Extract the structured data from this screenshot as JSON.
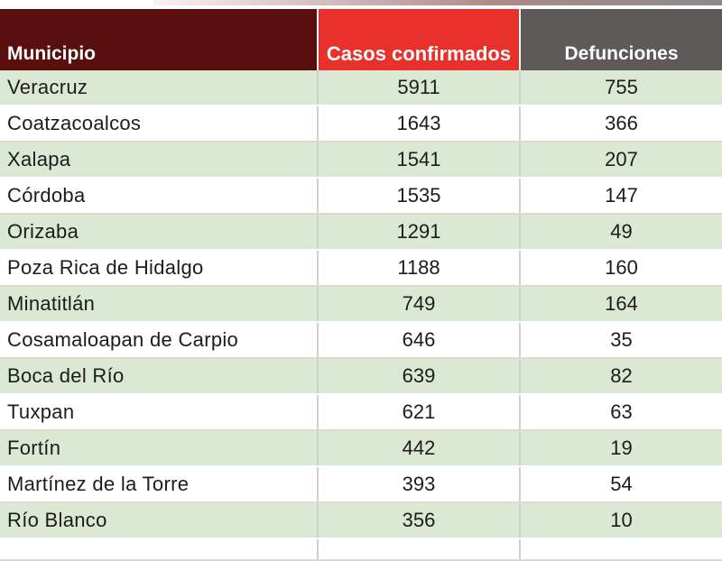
{
  "table": {
    "headers": {
      "municipio": "Municipio",
      "casos": "Casos confirmados",
      "defunciones": "Defunciones"
    },
    "rows": [
      {
        "municipio": "Veracruz",
        "casos": "5911",
        "defunciones": "755"
      },
      {
        "municipio": "Coatzacoalcos",
        "casos": "1643",
        "defunciones": "366"
      },
      {
        "municipio": "Xalapa",
        "casos": "1541",
        "defunciones": "207"
      },
      {
        "municipio": "Córdoba",
        "casos": "1535",
        "defunciones": "147"
      },
      {
        "municipio": "Orizaba",
        "casos": "1291",
        "defunciones": "49"
      },
      {
        "municipio": "Poza Rica de Hidalgo",
        "casos": "1188",
        "defunciones": "160"
      },
      {
        "municipio": "Minatitlán",
        "casos": "749",
        "defunciones": "164"
      },
      {
        "municipio": "Cosamaloapan de Carpio",
        "casos": "646",
        "defunciones": "35"
      },
      {
        "municipio": "Boca del Río",
        "casos": "639",
        "defunciones": "82"
      },
      {
        "municipio": "Tuxpan",
        "casos": "621",
        "defunciones": "63"
      },
      {
        "municipio": "Fortín",
        "casos": "442",
        "defunciones": "19"
      },
      {
        "municipio": "Martínez de la Torre",
        "casos": "393",
        "defunciones": "54"
      },
      {
        "municipio": "Río Blanco",
        "casos": "356",
        "defunciones": "10"
      }
    ]
  },
  "colors": {
    "header_municipio": "#5a0f0f",
    "header_casos": "#e8312b",
    "header_defunciones": "#5e5a5a",
    "row_stripe": "#dbe8d3"
  }
}
